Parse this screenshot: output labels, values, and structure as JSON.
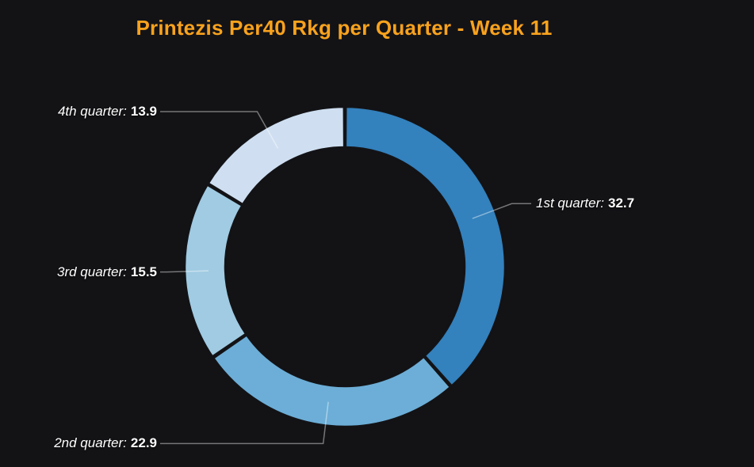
{
  "title": {
    "text": "Printezis Per40 Rkg per Quarter - Week 11",
    "color": "#f9a21d"
  },
  "chart_data": {
    "type": "pie",
    "subtype": "donut",
    "title": "Printezis Per40 Rkg per Quarter - Week 11",
    "direction": "clockwise",
    "start_angle_deg": 0,
    "background": "#131316",
    "label_format": "{label}: {value}",
    "slices": [
      {
        "label": "1st quarter",
        "value": 32.7,
        "color": "#3381bd"
      },
      {
        "label": "2nd quarter",
        "value": 22.9,
        "color": "#6caed7"
      },
      {
        "label": "3rd quarter",
        "value": 15.5,
        "color": "#a0cbe2"
      },
      {
        "label": "4th quarter",
        "value": 13.9,
        "color": "#cfdff1"
      }
    ],
    "leader_line_color": "rgba(255,255,255,0.42)"
  }
}
